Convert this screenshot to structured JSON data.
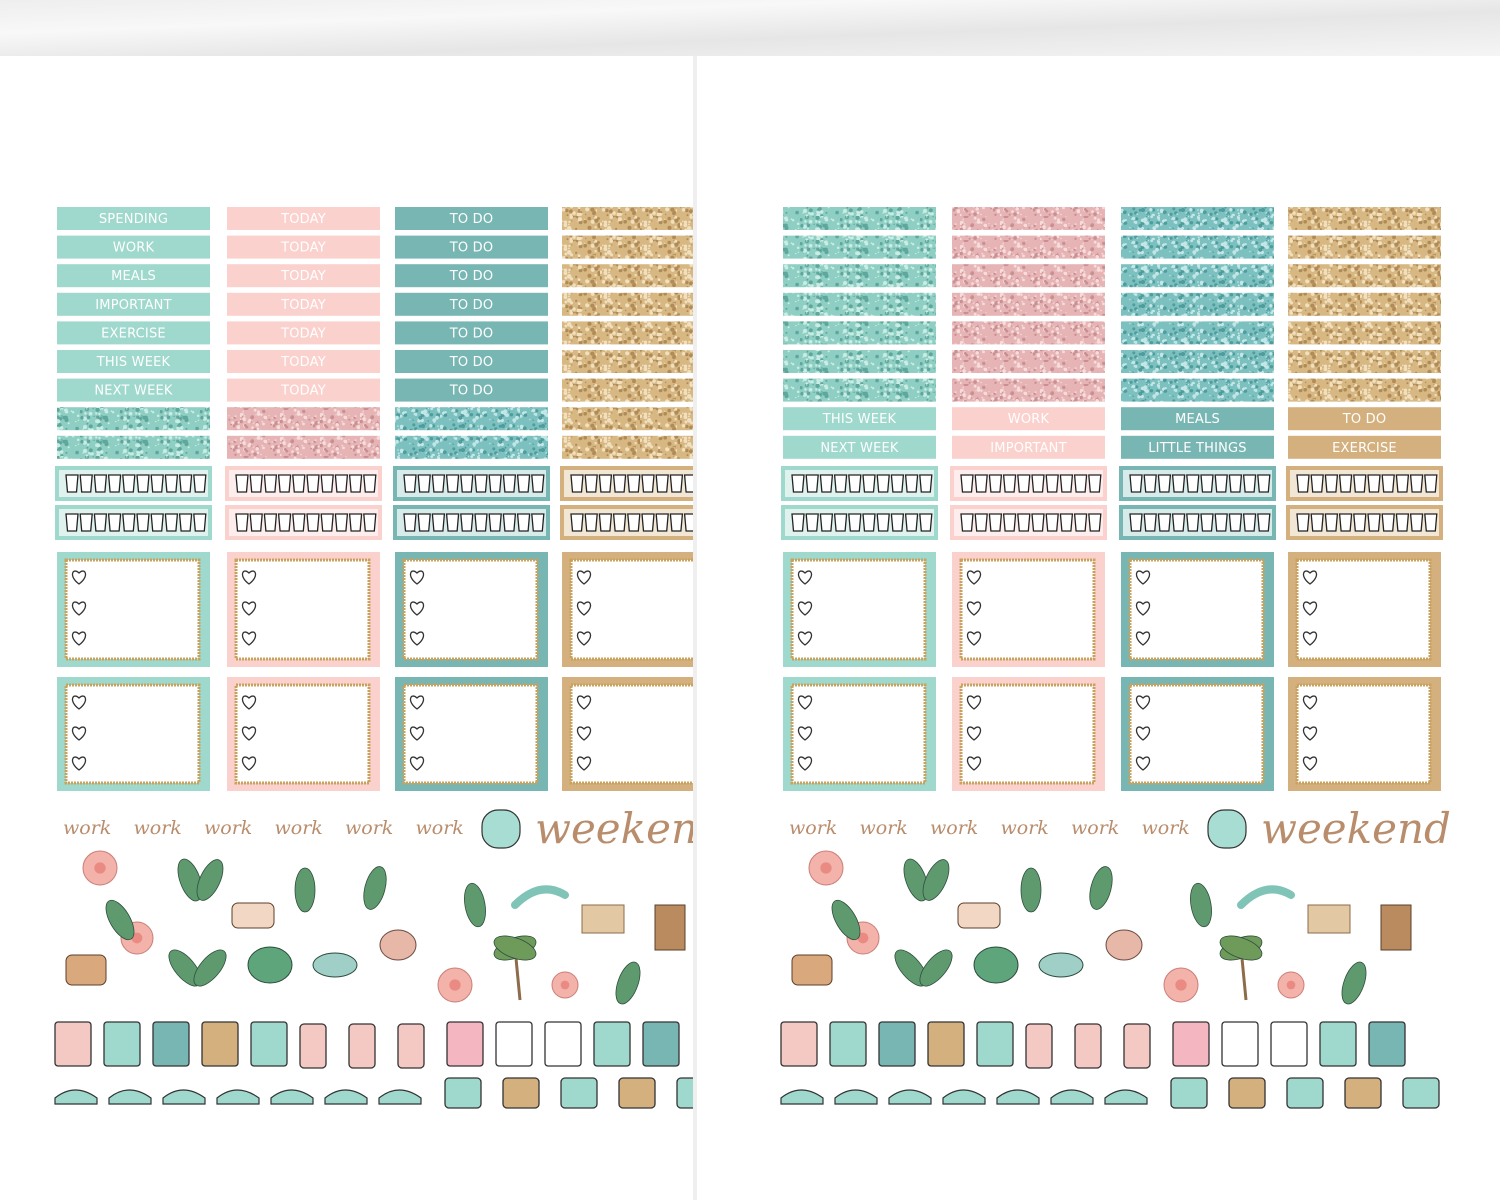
{
  "left_sheet": {
    "label_columns": [
      [
        "SPENDING",
        "WORK",
        "MEALS",
        "IMPORTANT",
        "EXERCISE",
        "THIS WEEK",
        "NEXT WEEK"
      ],
      [
        "TODAY",
        "TODAY",
        "TODAY",
        "TODAY",
        "TODAY",
        "TODAY",
        "TODAY"
      ],
      [
        "TO DO",
        "TO DO",
        "TO DO",
        "TO DO",
        "TO DO",
        "TO DO",
        "TO DO"
      ]
    ],
    "script_words": [
      "work",
      "work",
      "work",
      "work",
      "work",
      "work"
    ],
    "weekend": "weekend"
  },
  "right_sheet": {
    "label_columns": [
      [
        "THIS WEEK",
        "NEXT WEEK"
      ],
      [
        "WORK",
        "IMPORTANT"
      ],
      [
        "MEALS",
        "LITTLE THINGS"
      ],
      [
        "TO DO",
        "EXERCISE"
      ]
    ],
    "script_words": [
      "work",
      "work",
      "work",
      "work",
      "work",
      "work"
    ],
    "weekend": "weekend"
  }
}
